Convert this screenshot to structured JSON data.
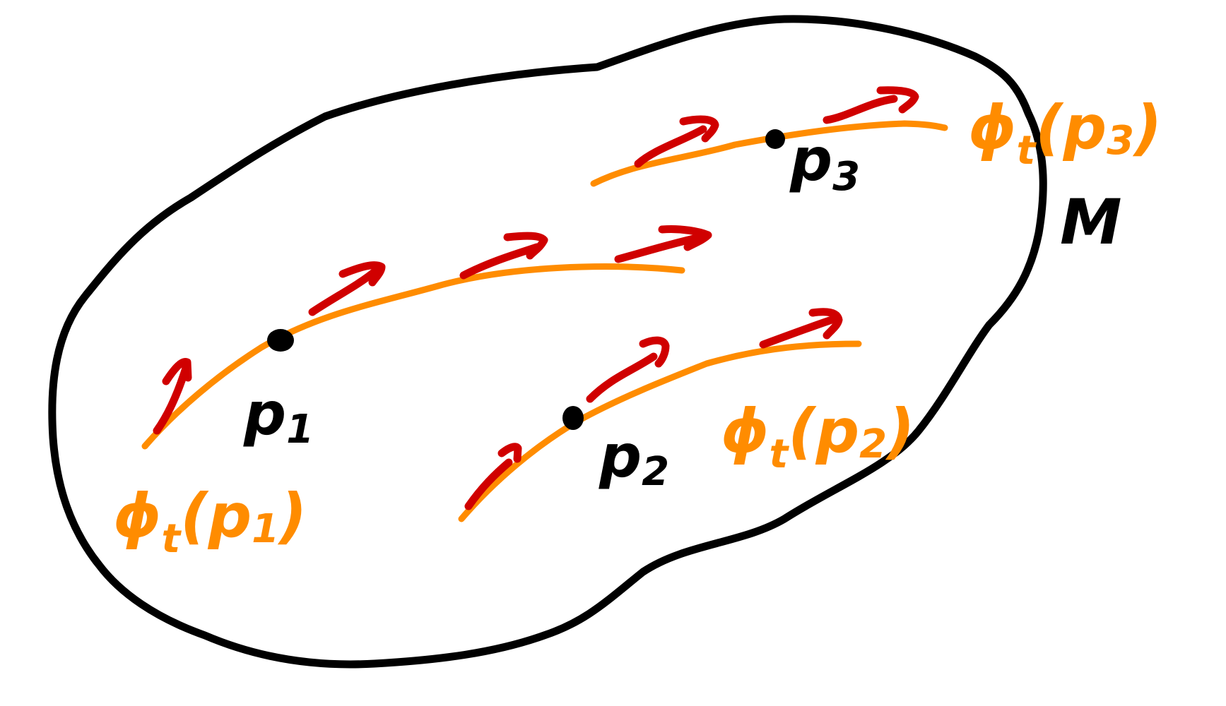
{
  "colors": {
    "boundary": "#000000",
    "flow_line": "#FF8C00",
    "arrow": "#D00000",
    "point": "#000000",
    "label_black": "#000000",
    "label_orange": "#FF8C00"
  },
  "manifold_label": "M",
  "points": [
    {
      "id": "p1",
      "label": "p",
      "subscript": "1"
    },
    {
      "id": "p2",
      "label": "p",
      "subscript": "2"
    },
    {
      "id": "p3",
      "label": "p",
      "subscript": "3"
    }
  ],
  "flow_labels": [
    {
      "id": "phi-p1",
      "base": "ϕ",
      "sub": "t",
      "arg": "(p",
      "arg_sub": "1",
      "close": ")"
    },
    {
      "id": "phi-p2",
      "base": "ϕ",
      "sub": "t",
      "arg": "(p",
      "arg_sub": "2",
      "close": ")"
    },
    {
      "id": "phi-p3",
      "base": "ϕ",
      "sub": "t",
      "arg": "(p",
      "arg_sub": "3",
      "close": ")"
    }
  ]
}
